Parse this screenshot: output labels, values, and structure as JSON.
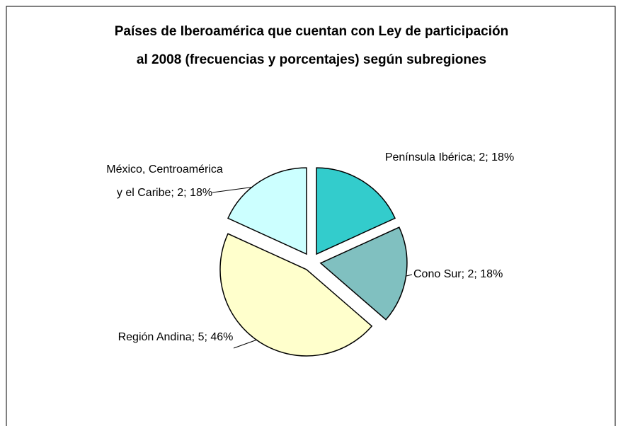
{
  "chart_data": {
    "type": "pie",
    "title": [
      "Países de Iberoamérica que cuentan con Ley de participación",
      "al 2008 (frecuencias y porcentajes) según subregiones"
    ],
    "values": [
      2,
      2,
      5,
      2
    ],
    "value_labels": [
      "Península Ibérica; 2; 18%",
      "Cono Sur; 2; 18%",
      "Región Andina; 5; 46%",
      "México, Centroamérica y el Caribe; 2; 18%"
    ],
    "colors": [
      "#33cccc",
      "#80c0c0",
      "#ffffcc",
      "#ccffff"
    ]
  }
}
